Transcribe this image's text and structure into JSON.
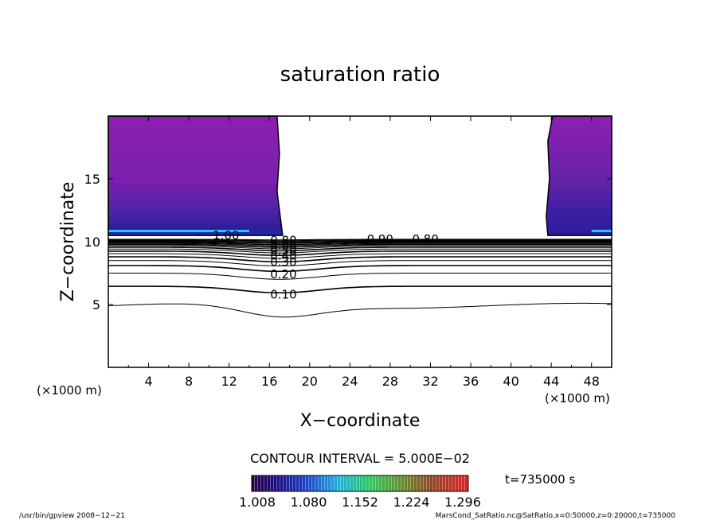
{
  "chart_data": {
    "type": "contour",
    "title": "saturation ratio",
    "xlabel": "X−coordinate",
    "ylabel": "Z−coordinate",
    "x_unit_left": "(×1000 m)",
    "x_unit_right": "(×1000 m)",
    "xlim": [
      0,
      50
    ],
    "ylim": [
      0,
      20
    ],
    "x_ticks": [
      4,
      8,
      12,
      16,
      20,
      24,
      28,
      32,
      36,
      40,
      44,
      48
    ],
    "y_ticks": [
      5,
      10,
      15
    ],
    "contour_interval_text": "CONTOUR INTERVAL = 5.000E−02",
    "time_text": "t=735000 s",
    "colorbar": {
      "labels": [
        "1.008",
        "1.080",
        "1.152",
        "1.224",
        "1.296"
      ],
      "range": [
        1.008,
        1.296
      ]
    },
    "contour_labels": [
      {
        "text": "0.10",
        "x": 17.4,
        "z": 5.8
      },
      {
        "text": "0.20",
        "x": 17.4,
        "z": 7.4
      },
      {
        "text": "0.30",
        "x": 17.4,
        "z": 8.4
      },
      {
        "text": "0.40",
        "x": 17.4,
        "z": 8.9
      },
      {
        "text": "0.50",
        "x": 17.4,
        "z": 9.3
      },
      {
        "text": "0.60",
        "x": 17.4,
        "z": 9.7
      },
      {
        "text": "0.80",
        "x": 17.4,
        "z": 10.1
      },
      {
        "text": "1.00",
        "x": 11.7,
        "z": 10.5
      },
      {
        "text": "0.90",
        "x": 27.0,
        "z": 10.2
      },
      {
        "text": "0.80",
        "x": 31.5,
        "z": 10.2
      }
    ],
    "supersaturated_regions_x": [
      [
        0,
        17
      ],
      [
        43.5,
        50
      ]
    ]
  },
  "footer": {
    "left": "/usr/bin/gpview   2008−12−21",
    "right": "MarsCond_SatRatio.nc@SatRatio,x=0:50000,z=0:20000,t=735000"
  },
  "colors": {
    "purple": "#8a1fb0",
    "deep_purple": "#6a22a8",
    "blue": "#2a1e9e",
    "cyan": "#1fb0ff",
    "axis": "#000000"
  }
}
